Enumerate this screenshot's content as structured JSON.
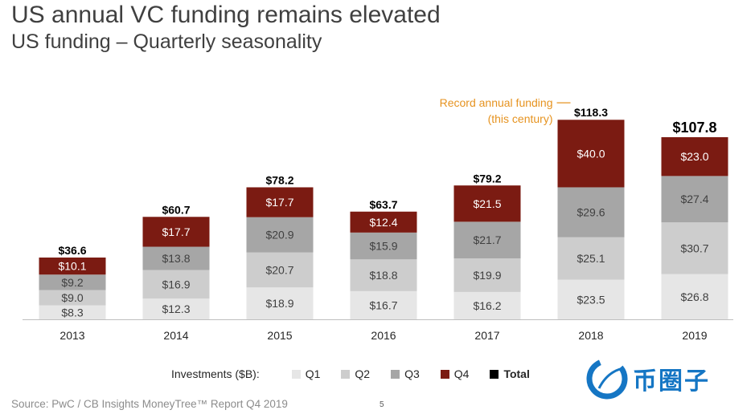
{
  "header": {
    "title": "US annual VC funding remains elevated",
    "subtitle": "US funding – Quarterly seasonality"
  },
  "colors": {
    "q1": "#e6e6e6",
    "q2": "#cdcdcd",
    "q3": "#a6a6a6",
    "q4": "#7b1b12",
    "total": "#000000",
    "annotation": "#e69320"
  },
  "legend": {
    "title": "Investments ($B):",
    "items": [
      {
        "label": "Q1",
        "color": "#e6e6e6"
      },
      {
        "label": "Q2",
        "color": "#cdcdcd"
      },
      {
        "label": "Q3",
        "color": "#a6a6a6"
      },
      {
        "label": "Q4",
        "color": "#7b1b12"
      },
      {
        "label": "Total",
        "color": "#000000"
      }
    ]
  },
  "chart_data": {
    "type": "bar",
    "stacked": true,
    "categories": [
      "2013",
      "2014",
      "2015",
      "2016",
      "2017",
      "2018",
      "2019"
    ],
    "series": [
      {
        "name": "Q1",
        "values": [
          8.3,
          12.3,
          18.9,
          16.7,
          16.2,
          23.5,
          26.8
        ],
        "labels": [
          "$8.3",
          "$12.3",
          "$18.9",
          "$16.7",
          "$16.2",
          "$23.5",
          "$26.8"
        ]
      },
      {
        "name": "Q2",
        "values": [
          9.0,
          16.9,
          20.7,
          18.8,
          19.9,
          25.1,
          30.7
        ],
        "labels": [
          "$9.0",
          "$16.9",
          "$20.7",
          "$18.8",
          "$19.9",
          "$25.1",
          "$30.7"
        ]
      },
      {
        "name": "Q3",
        "values": [
          9.2,
          13.8,
          20.9,
          15.9,
          21.7,
          29.6,
          27.4
        ],
        "labels": [
          "$9.2",
          "$13.8",
          "$20.9",
          "$15.9",
          "$21.7",
          "$29.6",
          "$27.4"
        ]
      },
      {
        "name": "Q4",
        "values": [
          10.1,
          17.7,
          17.7,
          12.4,
          21.5,
          40.0,
          23.0
        ],
        "labels": [
          "$10.1",
          "$17.7",
          "$17.7",
          "$12.4",
          "$21.5",
          "$40.0",
          "$23.0"
        ]
      }
    ],
    "totals": [
      36.6,
      60.7,
      78.2,
      63.7,
      79.2,
      118.3,
      107.8
    ],
    "total_labels": [
      "$36.6",
      "$60.7",
      "$78.2",
      "$63.7",
      "$79.2",
      "$118.3",
      "$107.8"
    ],
    "annotation": {
      "lines": [
        "Record annual funding",
        "(this century)"
      ],
      "category": "2018"
    },
    "ylim": [
      0,
      125
    ],
    "grid": false,
    "legend_position": "bottom"
  },
  "footer": {
    "source": "Source: PwC / CB Insights MoneyTree™ Report Q4 2019",
    "page_number": "5"
  },
  "brand": {
    "icon": "coin-circle-icon",
    "text": "币圈子"
  }
}
